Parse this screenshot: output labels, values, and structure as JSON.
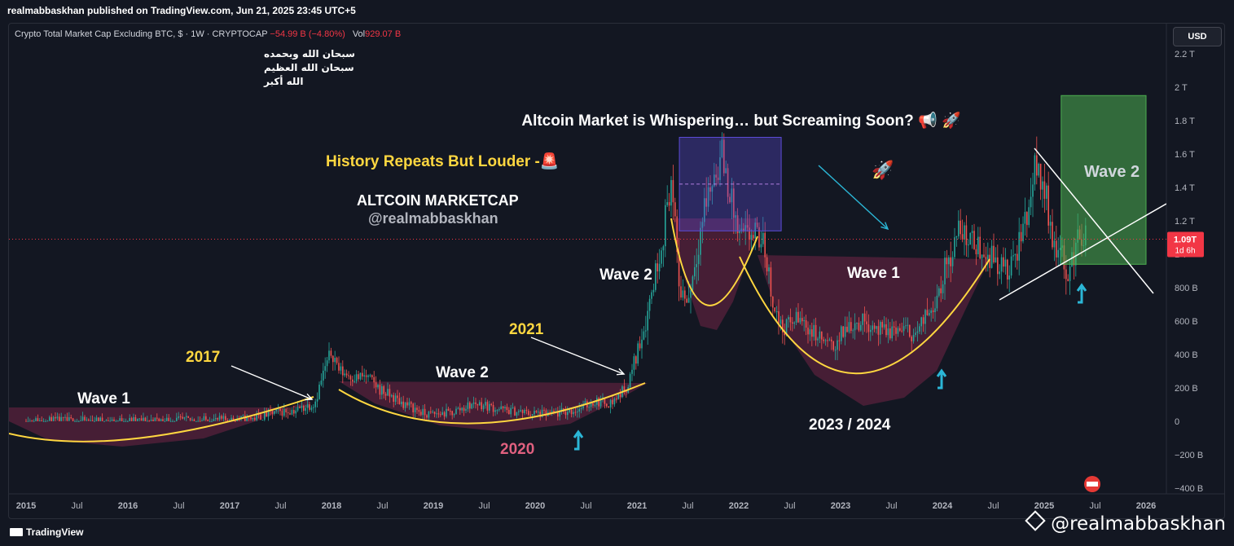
{
  "header": {
    "published": "realmabbaskhan published on TradingView.com, Jun 21, 2025 23:45 UTC+5"
  },
  "legend": {
    "symbol": "Crypto Total Market Cap Excluding BTC, $ · 1W · CRYPTOCAP",
    "change": "−54.99 B (−4.80%)",
    "vol_label": "Vol",
    "vol_value": "929.07 B"
  },
  "currency_button": "USD",
  "price_tag": {
    "value": "1.09T",
    "countdown": "1d 6h"
  },
  "footer": {
    "brand": "TradingView",
    "watermark": "@realmabbaskhan"
  },
  "arabic_lines": [
    "سبحان الله وبحمده",
    "سبحان الله العظيم",
    "الله أكبر"
  ],
  "annotations": {
    "headline": "Altcoin Market is Whispering… but Screaming Soon? 📢 🚀",
    "history": "History Repeats But Louder -🚨",
    "marketcap": "ALTCOIN MARKETCAP",
    "handle": "@realmabbaskhan",
    "wave1_left": "Wave 1",
    "wave2_mid": "Wave 2",
    "wave2_2021": "Wave 2",
    "wave1_right": "Wave 1",
    "wave2_box": "Wave 2",
    "y2017": "2017",
    "y2020": "2020",
    "y2021": "2021",
    "y2023": "2023 / 2024",
    "rocket": "🚀"
  },
  "chart_data": {
    "type": "candlestick",
    "title": "Crypto Total Market Cap Excluding BTC",
    "ylabel": "",
    "x_tick_labels": [
      "2015",
      "Jul",
      "2016",
      "Jul",
      "2017",
      "Jul",
      "2018",
      "Jul",
      "2019",
      "Jul",
      "2020",
      "Jul",
      "2021",
      "Jul",
      "2022",
      "Jul",
      "2023",
      "Jul",
      "2024",
      "Jul",
      "2025",
      "Jul",
      "2026"
    ],
    "y_tick_labels": [
      "2.2 T",
      "2 T",
      "1.8 T",
      "1.6 T",
      "1.4 T",
      "1.2 T",
      "1 T",
      "800 B",
      "600 B",
      "400 B",
      "200 B",
      "0",
      "−200 B",
      "−400 B"
    ],
    "y_ticks": [
      2.2,
      2.0,
      1.8,
      1.6,
      1.4,
      1.2,
      1.0,
      0.8,
      0.6,
      0.4,
      0.2,
      0,
      -0.2,
      -0.4
    ],
    "ylim": [
      -0.42,
      2.26
    ],
    "unit": "T USD",
    "last_price": 1.09,
    "colors": {
      "up": "#26a69a",
      "down": "#ef5350",
      "curve": "#ffd740",
      "annot": "#ffffff",
      "cyan": "#2bb6d6",
      "box_purple": "#5b4bd6",
      "box_green": "#4caf50",
      "last": "#f23645"
    },
    "series": [
      {
        "name": "weekly close (sampled)",
        "points": [
          [
            "2015-01",
            0.002
          ],
          [
            "2015-07",
            0.003
          ],
          [
            "2016-01",
            0.003
          ],
          [
            "2016-07",
            0.006
          ],
          [
            "2017-01",
            0.008
          ],
          [
            "2017-04",
            0.02
          ],
          [
            "2017-06",
            0.05
          ],
          [
            "2017-09",
            0.07
          ],
          [
            "2017-11",
            0.11
          ],
          [
            "2017-12",
            0.28
          ],
          [
            "2018-01",
            0.42
          ],
          [
            "2018-02",
            0.3
          ],
          [
            "2018-04",
            0.26
          ],
          [
            "2018-05",
            0.27
          ],
          [
            "2018-07",
            0.18
          ],
          [
            "2018-09",
            0.12
          ],
          [
            "2018-11",
            0.07
          ],
          [
            "2018-12",
            0.04
          ],
          [
            "2019-03",
            0.05
          ],
          [
            "2019-06",
            0.11
          ],
          [
            "2019-09",
            0.07
          ],
          [
            "2019-12",
            0.05
          ],
          [
            "2020-03",
            0.04
          ],
          [
            "2020-06",
            0.07
          ],
          [
            "2020-08",
            0.12
          ],
          [
            "2020-10",
            0.11
          ],
          [
            "2020-12",
            0.22
          ],
          [
            "2021-02",
            0.6
          ],
          [
            "2021-04",
            1.1
          ],
          [
            "2021-05",
            1.45
          ],
          [
            "2021-06",
            0.8
          ],
          [
            "2021-07",
            0.72
          ],
          [
            "2021-09",
            1.3
          ],
          [
            "2021-11",
            1.6
          ],
          [
            "2021-12",
            1.35
          ],
          [
            "2022-01",
            1.1
          ],
          [
            "2022-03",
            1.12
          ],
          [
            "2022-04",
            1.05
          ],
          [
            "2022-05",
            0.72
          ],
          [
            "2022-06",
            0.55
          ],
          [
            "2022-08",
            0.62
          ],
          [
            "2022-10",
            0.52
          ],
          [
            "2022-12",
            0.44
          ],
          [
            "2023-02",
            0.58
          ],
          [
            "2023-04",
            0.6
          ],
          [
            "2023-06",
            0.53
          ],
          [
            "2023-08",
            0.55
          ],
          [
            "2023-10",
            0.52
          ],
          [
            "2023-12",
            0.72
          ],
          [
            "2024-03",
            1.15
          ],
          [
            "2024-05",
            1.05
          ],
          [
            "2024-07",
            0.98
          ],
          [
            "2024-09",
            0.88
          ],
          [
            "2024-11",
            1.25
          ],
          [
            "2024-12",
            1.55
          ],
          [
            "2025-01",
            1.4
          ],
          [
            "2025-02",
            1.1
          ],
          [
            "2025-04",
            0.88
          ],
          [
            "2025-05",
            1.12
          ],
          [
            "2025-06",
            1.09
          ]
        ]
      }
    ],
    "overlays": {
      "purple_box": {
        "from": "2021-06",
        "to": "2022-06",
        "low": 1.14,
        "high": 1.7,
        "midline": 1.42
      },
      "green_box": {
        "from": "2025-03",
        "to": "2026-01",
        "low": 0.94,
        "high": 1.95
      }
    }
  }
}
